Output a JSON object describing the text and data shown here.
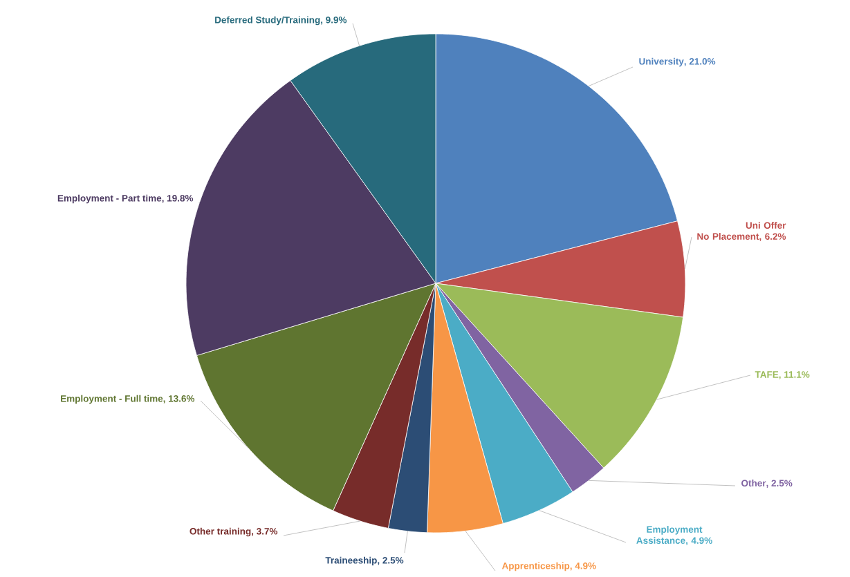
{
  "chart_data": {
    "type": "pie",
    "categories": [
      "University",
      "Uni Offer No Placement",
      "TAFE",
      "Other",
      "Employment Assistance",
      "Apprenticeship",
      "Traineeship",
      "Other training",
      "Employment - Full time",
      "Employment - Part time",
      "Deferred Study/Training"
    ],
    "values": [
      21.0,
      6.2,
      11.1,
      2.5,
      4.9,
      4.9,
      2.5,
      3.7,
      13.6,
      19.8,
      9.9
    ],
    "value_labels": [
      ", 21.0%",
      ", 6.2%",
      ", 11.1%",
      ", 2.5%",
      ", 4.9%",
      ", 4.9%",
      ", 2.5%",
      ", 3.7%",
      ", 13.6%",
      ", 19.8%",
      ", 9.9%"
    ],
    "colors": [
      "#4f81bd",
      "#c0504d",
      "#9bbb59",
      "#8064a2",
      "#4bacc6",
      "#f79646",
      "#2c4d75",
      "#772c2a",
      "#5f7530",
      "#4d3b62",
      "#276a7c"
    ]
  }
}
